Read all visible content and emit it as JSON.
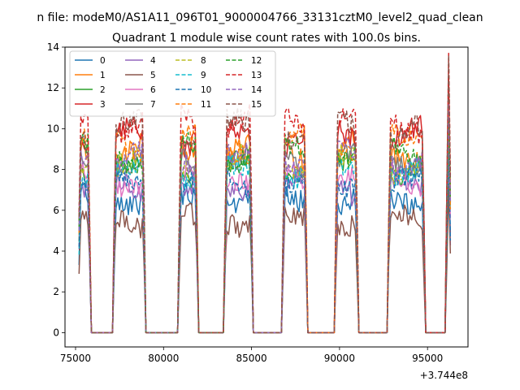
{
  "chart_data": {
    "type": "line",
    "suptitle": "n file: modeM0/AS1A11_096T01_9000004766_33131cztM0_level2_quad_clean",
    "title": "Quadrant 1 module wise count rates with 100.0s bins.",
    "xlabel": "",
    "ylabel": "",
    "x_offset_label": "+3.744e8",
    "xlim": [
      74400,
      97300
    ],
    "ylim": [
      -0.7,
      14.0
    ],
    "x_ticks": [
      75000,
      80000,
      85000,
      90000,
      95000
    ],
    "x_tick_labels": [
      "75000",
      "80000",
      "85000",
      "90000",
      "95000"
    ],
    "y_ticks": [
      0,
      2,
      4,
      6,
      8,
      10,
      12,
      14
    ],
    "y_tick_labels": [
      "0",
      "2",
      "4",
      "6",
      "8",
      "10",
      "12",
      "14"
    ],
    "bin_seconds": 100,
    "on_intervals": [
      [
        75200,
        75800
      ],
      [
        77200,
        78900
      ],
      [
        80900,
        81900
      ],
      [
        83500,
        85000
      ],
      [
        86800,
        88100
      ],
      [
        89800,
        91000
      ],
      [
        92800,
        94800
      ],
      [
        96100,
        96300
      ]
    ],
    "off_level": 0,
    "legend": {
      "placement": "upper-left",
      "ncol": 4
    },
    "series": [
      {
        "name": "0",
        "style": "solid",
        "color": "#1f77b4",
        "level": 6.5
      },
      {
        "name": "1",
        "style": "solid",
        "color": "#ff7f0e",
        "level": 9.0
      },
      {
        "name": "2",
        "style": "solid",
        "color": "#2ca02c",
        "level": 8.0
      },
      {
        "name": "3",
        "style": "solid",
        "color": "#d62728",
        "level": 9.6
      },
      {
        "name": "4",
        "style": "solid",
        "color": "#9467bd",
        "level": 7.1
      },
      {
        "name": "5",
        "style": "solid",
        "color": "#8c564b",
        "level": 5.5
      },
      {
        "name": "6",
        "style": "solid",
        "color": "#e377c2",
        "level": 7.6
      },
      {
        "name": "7",
        "style": "solid",
        "color": "#7f7f7f",
        "level": 8.5
      },
      {
        "name": "8",
        "style": "dashed",
        "color": "#bcbd22",
        "level": 8.3
      },
      {
        "name": "9",
        "style": "dashed",
        "color": "#17becf",
        "level": 7.8
      },
      {
        "name": "10",
        "style": "dashed",
        "color": "#1f77b4",
        "level": 7.3
      },
      {
        "name": "11",
        "style": "dashed",
        "color": "#ff7f0e",
        "level": 9.2
      },
      {
        "name": "12",
        "style": "dashed",
        "color": "#2ca02c",
        "level": 8.8
      },
      {
        "name": "13",
        "style": "dashed",
        "color": "#d62728",
        "level": 10.4
      },
      {
        "name": "14",
        "style": "dashed",
        "color": "#9467bd",
        "level": 8.6
      },
      {
        "name": "15",
        "style": "dashed",
        "color": "#8c564b",
        "level": 9.9
      }
    ]
  }
}
